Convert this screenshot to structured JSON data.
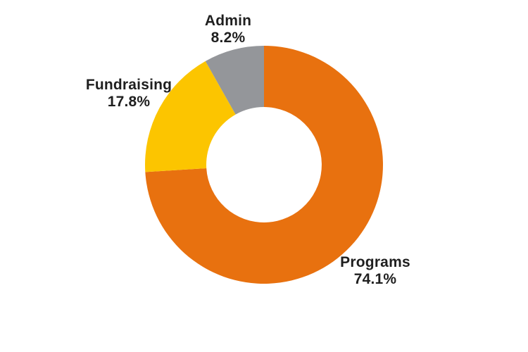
{
  "chart_data": {
    "type": "pie",
    "subtype": "donut",
    "title": "",
    "segments": [
      {
        "label": "Programs",
        "value": 74.1,
        "display": "74.1%",
        "color": "#E8710F"
      },
      {
        "label": "Fundraising",
        "value": 17.8,
        "display": "17.8%",
        "color": "#FCC500"
      },
      {
        "label": "Admin",
        "value": 8.2,
        "display": "8.2%",
        "color": "#94969A"
      }
    ],
    "start_angle_deg": 0,
    "direction": "clockwise",
    "inner_radius_ratio": 0.485,
    "legend": "none",
    "labels_position": "outside",
    "background": "#FFFFFF",
    "text_color": "#1F1F1F"
  }
}
